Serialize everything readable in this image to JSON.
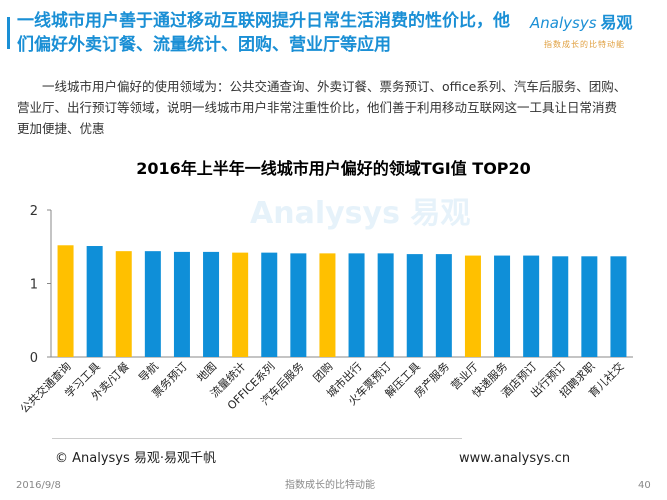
{
  "header": {
    "title": "一线城市用户善于通过移动互联网提升日常生活消费的性价比，他们偏好外卖订餐、流量统计、团购、营业厅等应用",
    "logo_text": "Analysys",
    "logo_cn": "易观",
    "logo_tagline": "指数成长的比特动能",
    "accent_color": "#1a8fd5"
  },
  "description": "一线城市用户偏好的使用领域为：公共交通查询、外卖订餐、票务预订、office系列、汽车后服务、团购、营业厅、出行预订等领域，说明一线城市用户非常注重性价比，他们善于利用移动互联网这一工具让日常消费更加便捷、优惠",
  "watermark": "Analysys 易观",
  "chart_data": {
    "type": "bar",
    "title": "2016年上半年一线城市用户偏好的领域TGI值 TOP20",
    "xlabel": "",
    "ylabel": "",
    "ylim": [
      0,
      2
    ],
    "yticks": [
      "0",
      "1",
      "2"
    ],
    "grid": false,
    "legend": "none",
    "categories": [
      "公共交通查询",
      "学习工具",
      "外卖/订餐",
      "导航",
      "票务预订",
      "地图",
      "流量统计",
      "OFFICE系列",
      "汽车后服务",
      "团购",
      "城市出行",
      "火车票预订",
      "解压工具",
      "房产服务",
      "营业厅",
      "快递服务",
      "酒店预订",
      "出行预订",
      "招聘求职",
      "育儿社交"
    ],
    "values": [
      1.52,
      1.51,
      1.44,
      1.44,
      1.43,
      1.43,
      1.42,
      1.42,
      1.41,
      1.41,
      1.41,
      1.41,
      1.4,
      1.4,
      1.38,
      1.38,
      1.38,
      1.37,
      1.37,
      1.37
    ],
    "highlighted": [
      true,
      false,
      true,
      false,
      false,
      false,
      true,
      false,
      false,
      true,
      false,
      false,
      false,
      false,
      true,
      false,
      false,
      false,
      false,
      false
    ],
    "colors": {
      "default": "#0f8fd8",
      "highlight": "#ffc000",
      "axis": "#888888"
    }
  },
  "footer": {
    "copyright": "© Analysys 易观·易观千帆",
    "website": "www.analysys.cn",
    "date": "2016/9/8",
    "slogan": "指数成长的比特动能",
    "page_number": "40"
  }
}
